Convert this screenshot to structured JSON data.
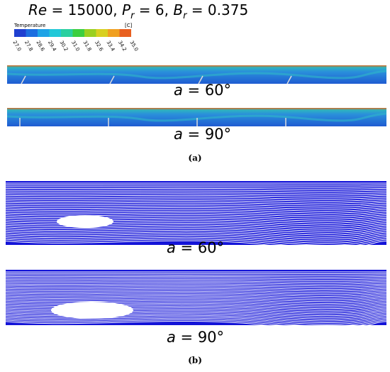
{
  "header": {
    "title_parts": [
      "Re",
      " = 15000, ",
      "P",
      "r",
      " = 6, ",
      "B",
      "r",
      " = 0.375"
    ]
  },
  "colorbar": {
    "label": "Temperature",
    "unit": "[C]",
    "ticks": [
      "27.0",
      "27.8",
      "28.6",
      "29.4",
      "30.2",
      "31.0",
      "31.8",
      "32.6",
      "33.4",
      "34.2",
      "35.0"
    ]
  },
  "panel_a": {
    "captions": [
      [
        "a",
        " = 60°"
      ],
      [
        "a",
        " = 90°"
      ]
    ],
    "label": "(a)"
  },
  "panel_b": {
    "captions": [
      [
        "a",
        " = 60°"
      ],
      [
        "a",
        " = 90°"
      ]
    ],
    "label": "(b)"
  }
}
